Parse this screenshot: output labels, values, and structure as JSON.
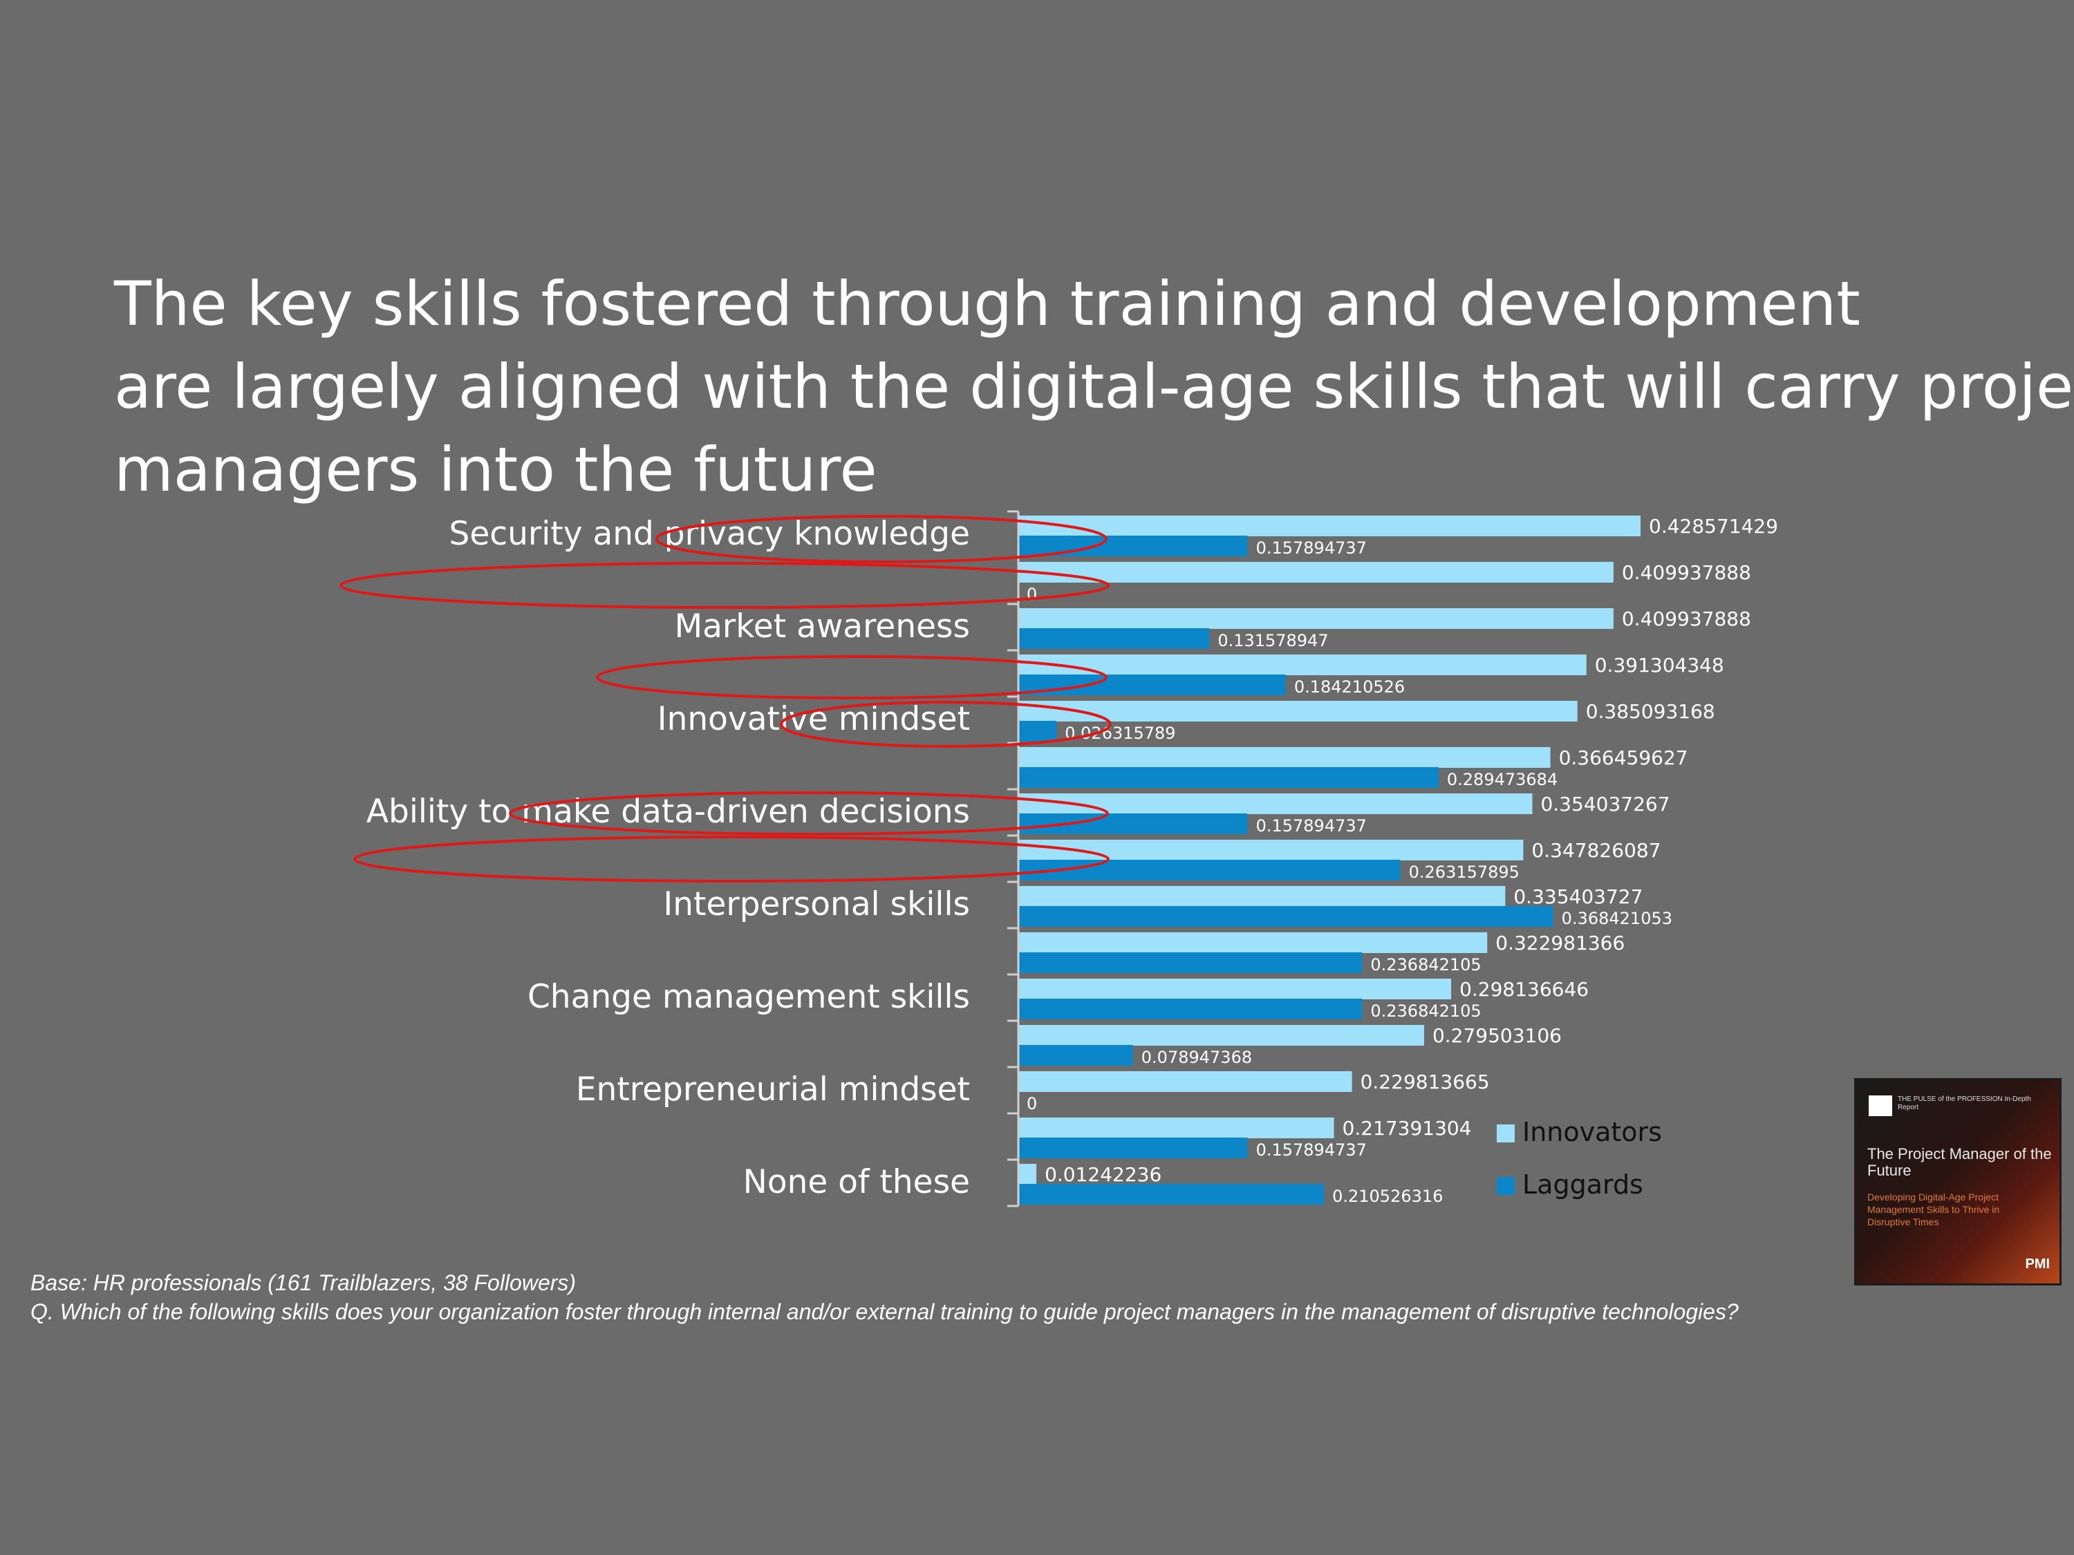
{
  "title_lines": [
    "The key skills fostered through training and development",
    "are largely aligned with the digital-age skills that will carry project",
    "managers into the future"
  ],
  "footnote": {
    "base": "Base: HR professionals (161 Trailblazers, 38 Followers)",
    "question": "Q. Which of the following skills does your organization foster through internal and/or external training to guide project managers in the management of disruptive technologies?"
  },
  "report_cover": {
    "header": "THE PULSE of the PROFESSION In-Depth Report",
    "title": "The Project Manager of the Future",
    "subtitle": "Developing Digital-Age Project Management Skills to Thrive in Disruptive Times",
    "brand": "PMI"
  },
  "colors": {
    "background": "#6b6b6b",
    "innovators": "#9fe0fb",
    "laggards": "#0b87c9",
    "highlight_ellipse": "#e01818"
  },
  "chart_data": {
    "type": "bar",
    "orientation": "horizontal",
    "categories": [
      "Security and privacy knowledge",
      "",
      "Market awareness",
      "",
      "Innovative mindset",
      "",
      "Ability to make data-driven decisions",
      "",
      "Interpersonal skills",
      "",
      "Change management skills",
      "",
      "Entrepreneurial mindset",
      "",
      "None of these"
    ],
    "series": [
      {
        "name": "Innovators",
        "values": [
          0.428571429,
          0.409937888,
          0.409937888,
          0.391304348,
          0.385093168,
          0.366459627,
          0.354037267,
          0.347826087,
          0.335403727,
          0.322981366,
          0.298136646,
          0.279503106,
          0.229813665,
          0.217391304,
          0.01242236
        ],
        "labels": [
          "0.428571429",
          "0.409937888",
          "0.409937888",
          "0.391304348",
          "0.385093168",
          "0.366459627",
          "0.354037267",
          "0.347826087",
          "0.335403727",
          "0.322981366",
          "0.298136646",
          "0.279503106",
          "0.229813665",
          "0.217391304",
          "0.01242236"
        ]
      },
      {
        "name": "Laggards",
        "values": [
          0.157894737,
          0,
          0.131578947,
          0.184210526,
          0.026315789,
          0.289473684,
          0.157894737,
          0.263157895,
          0.368421053,
          0.236842105,
          0.236842105,
          0.078947368,
          0,
          0.157894737,
          0.210526316
        ],
        "labels": [
          "0.157894737",
          "0",
          "0.131578947",
          "0.184210526",
          "0.026315789",
          "0.289473684",
          "0.157894737",
          "0.263157895",
          "0.368421053",
          "0.236842105",
          "0.236842105",
          "0.078947368",
          "0",
          "0.157894737",
          "0.210526316"
        ]
      }
    ],
    "xlim": [
      0,
      0.5
    ],
    "grid": false,
    "legend": "right"
  }
}
